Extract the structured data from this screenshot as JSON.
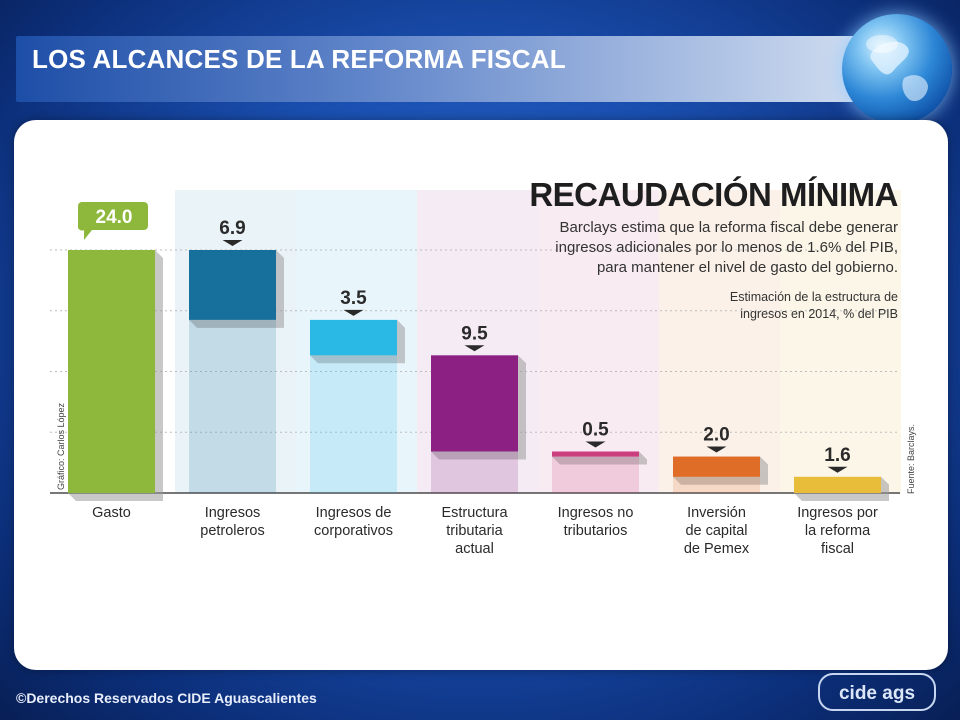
{
  "slide": {
    "title": "LOS ALCANCES DE LA REFORMA FISCAL",
    "footer": "©Derechos Reservados CIDE Aguascalientes",
    "logo_text": "cide ags"
  },
  "chart_data": {
    "type": "bar",
    "subtype": "waterfall",
    "title": "RECAUDACIÓN MÍNIMA",
    "subtitle_lines": [
      "Barclays estima que la reforma fiscal debe generar",
      "ingresos adicionales por lo menos de 1.6% del PIB,",
      "para mantener el nivel de gasto del gobierno."
    ],
    "note_lines": [
      "Estimación de la estructura de",
      "ingresos en 2014, % del PIB"
    ],
    "credit": "Gráfico: Carlos López",
    "source": "Fuente: Barclays.",
    "ylim": [
      0,
      24.0
    ],
    "grid": true,
    "categories": [
      [
        "Gasto"
      ],
      [
        "Ingresos",
        "petroleros"
      ],
      [
        "Ingresos de",
        "corporativos"
      ],
      [
        "Estructura",
        "tributaria",
        "actual"
      ],
      [
        "Ingresos no",
        "tributarios"
      ],
      [
        "Inversión",
        "de capital",
        "de Pemex"
      ],
      [
        "Ingresos por",
        "la reforma",
        "fiscal"
      ]
    ],
    "values": [
      24.0,
      6.9,
      3.5,
      9.5,
      0.5,
      2.0,
      1.6
    ],
    "labels": [
      "24.0",
      "6.9",
      "3.5",
      "9.5",
      "0.5",
      "2.0",
      "1.6"
    ],
    "bar_bottoms": [
      0,
      17.1,
      13.6,
      4.1,
      3.6,
      1.6,
      0
    ],
    "colors": [
      "#8db83c",
      "#176f9b",
      "#2ab8e4",
      "#8c2183",
      "#cc3f7f",
      "#df6c27",
      "#e7bd3a"
    ],
    "column_tints": [
      "#ffffff",
      "#e6f1f7",
      "#e4f4fb",
      "#f3e7f2",
      "#f7e7ee",
      "#fbeee5",
      "#fbf5e4"
    ]
  }
}
